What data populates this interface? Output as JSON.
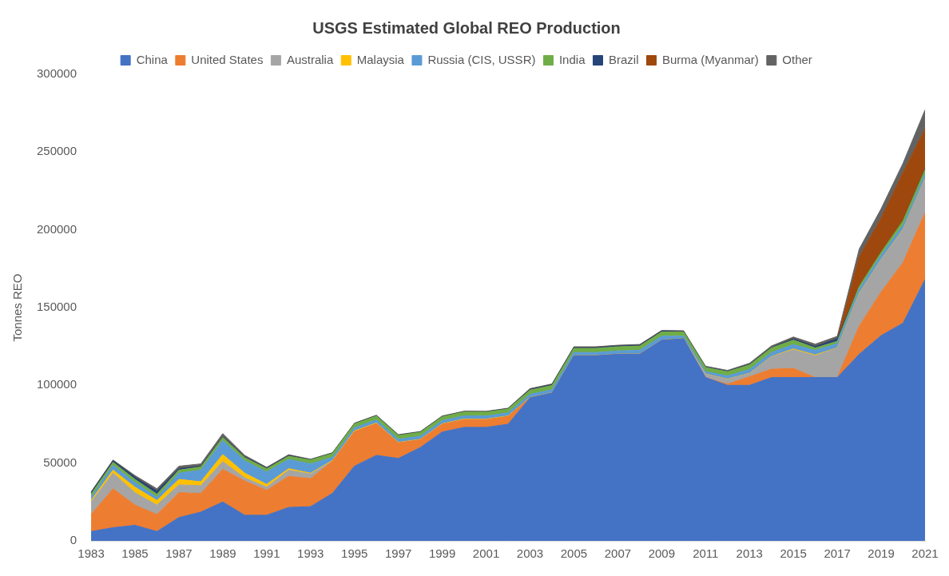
{
  "chart_data": {
    "type": "line",
    "stacked": true,
    "title": "USGS Estimated Global REO Production",
    "y_label": "Tonnes REO",
    "legend": "top",
    "grid": false,
    "categories": [
      "1983",
      null,
      "1985",
      null,
      "1987",
      null,
      "1989",
      null,
      "1991",
      null,
      "1993",
      null,
      "1995",
      null,
      "1997",
      null,
      "1999",
      null,
      "2001",
      null,
      "2003",
      null,
      "2005",
      null,
      "2007",
      null,
      "2009",
      null,
      "2011",
      null,
      "2013",
      null,
      "2015",
      null,
      "2017",
      null,
      "2019",
      null,
      "2021"
    ],
    "ylim": [
      0,
      300000
    ],
    "yticks": [
      0,
      50000,
      100000,
      150000,
      200000,
      250000,
      300000
    ],
    "series": [
      {
        "name": "China",
        "color": "#4472C4",
        "values": [
          6000,
          8500,
          10000,
          6000,
          15000,
          18500,
          25000,
          16500,
          16500,
          21500,
          22000,
          30600,
          48000,
          55000,
          53000,
          60000,
          70000,
          73000,
          73000,
          75000,
          92000,
          95000,
          119000,
          119000,
          120000,
          120000,
          129000,
          130000,
          105000,
          100000,
          100000,
          105000,
          105000,
          105000,
          105000,
          120000,
          132000,
          140000,
          168000
        ]
      },
      {
        "name": "United States",
        "color": "#ED7D31",
        "values": [
          11000,
          25000,
          13000,
          11000,
          16000,
          12000,
          21000,
          22000,
          16000,
          20000,
          18000,
          20700,
          22200,
          20400,
          10000,
          5000,
          5000,
          5000,
          5000,
          5000,
          0,
          0,
          0,
          0,
          0,
          0,
          0,
          0,
          0,
          800,
          5500,
          5400,
          5900,
          0,
          0,
          18000,
          28000,
          39000,
          43000
        ]
      },
      {
        "name": "Australia",
        "color": "#A5A5A5",
        "values": [
          8000,
          10000,
          8000,
          6000,
          5000,
          5000,
          5000,
          2000,
          2000,
          3900,
          3000,
          0,
          0,
          0,
          0,
          0,
          0,
          0,
          0,
          0,
          0,
          0,
          0,
          0,
          0,
          0,
          0,
          0,
          2200,
          3200,
          2000,
          8000,
          12000,
          14000,
          19000,
          21000,
          21000,
          21000,
          22000
        ]
      },
      {
        "name": "Malaysia",
        "color": "#FFC000",
        "values": [
          1000,
          2000,
          3500,
          3000,
          3500,
          2500,
          4500,
          3000,
          1800,
          1000,
          500,
          400,
          500,
          400,
          300,
          300,
          300,
          400,
          300,
          300,
          200,
          200,
          100,
          100,
          100,
          100,
          100,
          100,
          100,
          100,
          200,
          200,
          500,
          500,
          200,
          200,
          100,
          300,
          100
        ]
      },
      {
        "name": "Russia (CIS, USSR)",
        "color": "#5B9BD5",
        "values": [
          2000,
          3000,
          3000,
          2000,
          4000,
          7500,
          9000,
          8000,
          8000,
          6000,
          6000,
          2000,
          2000,
          2000,
          2000,
          2000,
          2000,
          2000,
          2000,
          2000,
          2000,
          2000,
          2000,
          2000,
          2000,
          2500,
          2500,
          1500,
          1500,
          2000,
          2500,
          2500,
          2800,
          3000,
          2600,
          2600,
          2700,
          2700,
          2600
        ]
      },
      {
        "name": "India",
        "color": "#70AD47",
        "values": [
          2000,
          2000,
          2000,
          2000,
          2000,
          2000,
          2000,
          2000,
          2000,
          2000,
          2500,
          2500,
          2500,
          2500,
          2500,
          2500,
          2500,
          2500,
          2500,
          2500,
          2700,
          2700,
          2700,
          2700,
          2700,
          2700,
          2700,
          2700,
          2700,
          2700,
          2900,
          2900,
          2900,
          1500,
          1500,
          1800,
          1800,
          2900,
          2900
        ]
      },
      {
        "name": "Brazil",
        "color": "#264478",
        "values": [
          1000,
          1000,
          1500,
          2000,
          1000,
          500,
          500,
          500,
          500,
          500,
          200,
          200,
          200,
          200,
          200,
          200,
          200,
          200,
          200,
          200,
          500,
          500,
          500,
          500,
          500,
          500,
          500,
          300,
          300,
          300,
          300,
          300,
          800,
          1000,
          1700,
          0,
          0,
          0,
          500
        ]
      },
      {
        "name": "Burma (Myanmar)",
        "color": "#9E480E",
        "values": [
          0,
          0,
          0,
          0,
          0,
          0,
          0,
          0,
          0,
          0,
          0,
          0,
          0,
          0,
          0,
          0,
          0,
          0,
          0,
          0,
          0,
          0,
          0,
          0,
          0,
          0,
          0,
          0,
          0,
          0,
          0,
          0,
          0,
          0,
          0,
          19000,
          22000,
          31000,
          26000
        ]
      },
      {
        "name": "Other",
        "color": "#636363",
        "values": [
          500,
          500,
          1000,
          1500,
          1500,
          1500,
          2000,
          1000,
          500,
          500,
          300,
          300,
          300,
          300,
          300,
          300,
          300,
          300,
          300,
          300,
          500,
          500,
          500,
          500,
          500,
          500,
          500,
          500,
          500,
          500,
          800,
          1000,
          1200,
          1500,
          1500,
          5000,
          6000,
          6000,
          12000
        ]
      }
    ]
  }
}
